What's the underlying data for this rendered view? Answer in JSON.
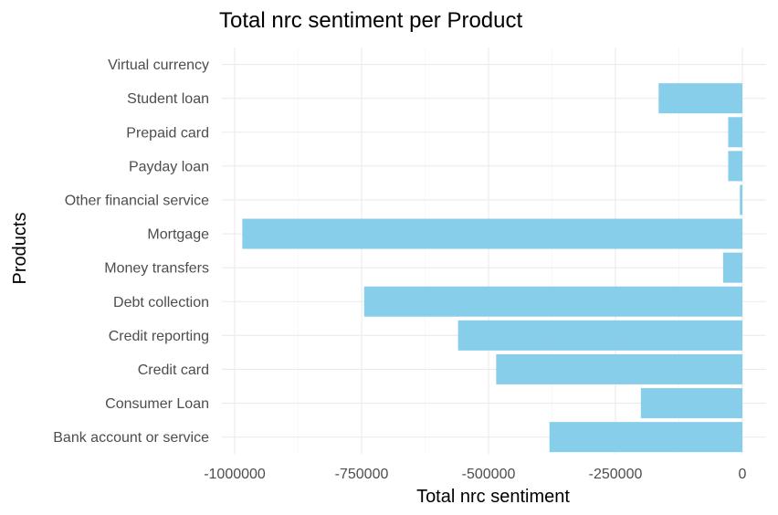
{
  "chart_data": {
    "type": "bar",
    "orientation": "horizontal",
    "title": "Total nrc sentiment per Product",
    "xlabel": "Total nrc sentiment",
    "ylabel": "Products",
    "categories": [
      "Bank account or service",
      "Consumer Loan",
      "Credit card",
      "Credit reporting",
      "Debt collection",
      "Money transfers",
      "Mortgage",
      "Other financial service",
      "Payday loan",
      "Prepaid card",
      "Student loan",
      "Virtual currency"
    ],
    "values": [
      -380000,
      -200000,
      -485000,
      -560000,
      -745000,
      -38000,
      -985000,
      -5000,
      -28000,
      -28000,
      -165000,
      0
    ],
    "xlim": [
      -1000000,
      0
    ],
    "xticks": [
      -1000000,
      -750000,
      -500000,
      -250000,
      0
    ],
    "xtick_labels": [
      "-1000000",
      "-750000",
      "-500000",
      "-250000",
      "0"
    ],
    "bar_color": "#87ceeb",
    "grid": true,
    "legend": "none"
  }
}
